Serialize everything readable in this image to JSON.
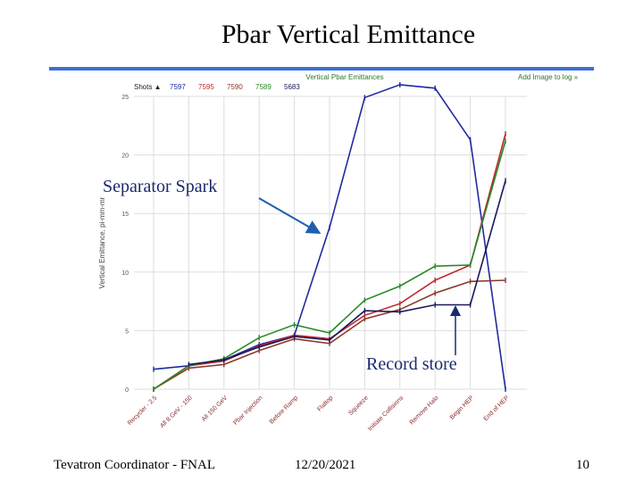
{
  "slide": {
    "title": "Pbar Vertical  Emittance",
    "footer_left": "Tevatron Coordinator - FNAL",
    "footer_date": "12/20/2021",
    "footer_page": "10",
    "accent_color": "#3b6fd8"
  },
  "annotations": {
    "separator_spark": "Separator Spark",
    "record_store": "Record store"
  },
  "chart_data": {
    "type": "line",
    "title": "Vertical Pbar Emittances",
    "header_link": "Add Image to log »",
    "legend_prefix": "Shots ▲",
    "ylabel": "Vertical Emittance, pi-mm-mr",
    "xlabel": "",
    "ylim": [
      0,
      25
    ],
    "yticks": [
      0,
      5,
      10,
      15,
      20,
      25
    ],
    "grid": true,
    "categories": [
      "Recycler - 2.5",
      "All 8 GeV - 150",
      "All 150 GeV",
      "Pbar Injection",
      "Before Ramp",
      "Flattop",
      "Squeeze",
      "Initiate Collisions",
      "Remove Halo",
      "Begin HEP",
      "End of HEP"
    ],
    "series": [
      {
        "name": "7597",
        "color": "#1f2ba0",
        "values": [
          1.7,
          2.0,
          2.5,
          3.8,
          4.6,
          13.8,
          24.9,
          26.0,
          25.7,
          21.3,
          0.0
        ]
      },
      {
        "name": "7595",
        "color": "#c0282d",
        "values": [
          0.0,
          2.0,
          2.4,
          3.7,
          4.6,
          4.3,
          6.3,
          7.3,
          9.3,
          10.6,
          21.8
        ]
      },
      {
        "name": "7590",
        "color": "#8a3a2a",
        "values": [
          0.0,
          1.8,
          2.1,
          3.3,
          4.3,
          3.9,
          6.0,
          6.8,
          8.2,
          9.2,
          9.3
        ]
      },
      {
        "name": "7589",
        "color": "#2a8a2a",
        "values": [
          0.0,
          2.0,
          2.6,
          4.4,
          5.5,
          4.8,
          7.6,
          8.8,
          10.5,
          10.6,
          21.2
        ]
      },
      {
        "name": "5683",
        "color": "#161a5e",
        "values": [
          null,
          2.1,
          2.5,
          3.6,
          4.5,
          4.2,
          6.7,
          6.6,
          7.2,
          7.2,
          17.8
        ]
      }
    ]
  }
}
